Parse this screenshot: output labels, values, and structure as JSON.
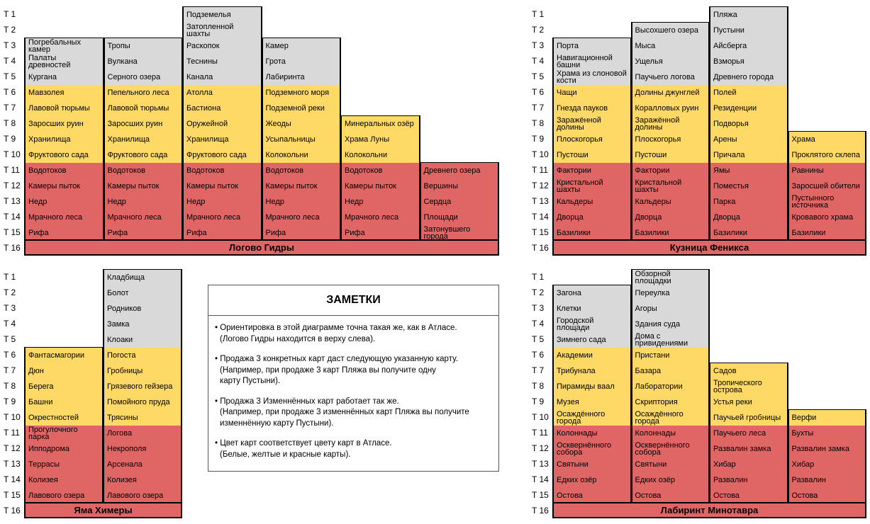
{
  "tier_labels": [
    "T 1",
    "T 2",
    "T 3",
    "T 4",
    "T 5",
    "T 6",
    "T 7",
    "T 8",
    "T 9",
    "T 10",
    "T 11",
    "T 12",
    "T 13",
    "T 14",
    "T 15",
    "T 16"
  ],
  "panels": [
    {
      "title": "Логово Гидры",
      "columns": [
        [
          null,
          null,
          "Погребальных камер",
          "Палаты древностей",
          "Кургана",
          "Мавзолея",
          "Лавовой тюрьмы",
          "Заросших руин",
          "Хранилища",
          "Фруктового сада",
          "Водотоков",
          "Камеры пыток",
          "Недр",
          "Мрачного леса",
          "Рифа"
        ],
        [
          null,
          null,
          "Тропы",
          "Вулкана",
          "Серного озера",
          "Пепельного леса",
          "Лавовой тюрьмы",
          "Заросших руин",
          "Хранилища",
          "Фруктового сада",
          "Водотоков",
          "Камеры пыток",
          "Недр",
          "Мрачного леса",
          "Рифа"
        ],
        [
          "Подземелья",
          "Затопленной шахты",
          "Раскопок",
          "Теснины",
          "Канала",
          "Атолла",
          "Бастиона",
          "Оружейной",
          "Хранилища",
          "Фруктового сада",
          "Водотоков",
          "Камеры пыток",
          "Недр",
          "Мрачного леса",
          "Рифа"
        ],
        [
          null,
          null,
          "Камер",
          "Грота",
          "Лабиринта",
          "Подземного моря",
          "Подземной реки",
          "Жеоды",
          "Усыпальницы",
          "Колокольни",
          "Водотоков",
          "Камеры пыток",
          "Недр",
          "Мрачного леса",
          "Рифа"
        ],
        [
          null,
          null,
          null,
          null,
          null,
          null,
          null,
          "Минеральных озёр",
          "Храма Луны",
          "Колокольни",
          "Водотоков",
          "Камеры пыток",
          "Недр",
          "Мрачного леса",
          "Рифа"
        ],
        [
          null,
          null,
          null,
          null,
          null,
          null,
          null,
          null,
          null,
          null,
          "Древнего озера",
          "Вершины",
          "Сердца",
          "Площади",
          "Затонувшего города"
        ]
      ]
    },
    {
      "title": "Кузница Феникса",
      "columns": [
        [
          null,
          null,
          "Порта",
          "Навигационной башни",
          "Храма из слоновой кости",
          "Чащи",
          "Гнезда пауков",
          "Заражённой долины",
          "Плоскогорья",
          "Пустоши",
          "Фактории",
          "Кристальной шахты",
          "Кальдеры",
          "Дворца",
          "Базилики"
        ],
        [
          null,
          "Высохшего озера",
          "Мыса",
          "Ущелья",
          "Паучьего логова",
          "Долины джунглей",
          "Коралловых руин",
          "Заражённой долины",
          "Плоскогорья",
          "Пустоши",
          "Фактории",
          "Кристальной шахты",
          "Кальдеры",
          "Дворца",
          "Базилики"
        ],
        [
          "Пляжа",
          "Пустыни",
          "Айсберга",
          "Взморья",
          "Древнего города",
          "Полей",
          "Резиденции",
          "Подворья",
          "Арены",
          "Причала",
          "Ямы",
          "Поместья",
          "Парка",
          "Дворца",
          "Базилики"
        ],
        [
          null,
          null,
          null,
          null,
          null,
          null,
          null,
          null,
          "Храма",
          "Проклятого склепа",
          "Равнины",
          "Заросшей обители",
          "Пустынного источника",
          "Кровавого храма",
          "Базилики"
        ]
      ]
    },
    {
      "title": "Яма Химеры",
      "columns": [
        [
          null,
          null,
          null,
          null,
          null,
          "Фантасмагории",
          "Дюн",
          "Берега",
          "Башни",
          "Окрестностей",
          "Прогулочного парка",
          "Ипподрома",
          "Террасы",
          "Колизея",
          "Лавового озера"
        ],
        [
          "Кладбища",
          "Болот",
          "Родников",
          "Замка",
          "Клоаки",
          "Погоста",
          "Гробницы",
          "Грязевого гейзера",
          "Помойного пруда",
          "Трясины",
          "Логова",
          "Некрополя",
          "Арсенала",
          "Колизея",
          "Лавового озера"
        ]
      ]
    },
    {
      "title": "Лабиринт Минотавра",
      "columns": [
        [
          null,
          "Загона",
          "Клетки",
          "Городской площади",
          "Зимнего сада",
          "Академии",
          "Трибунала",
          "Пирамиды ваал",
          "Музея",
          "Осаждённого города",
          "Колоннады",
          "Осквернённого собора",
          "Святыни",
          "Едких озёр",
          "Остова"
        ],
        [
          "Обзорной площадки",
          "Переулка",
          "Агоры",
          "Здания суда",
          "Дома с привидениями",
          "Пристани",
          "Базара",
          "Лаборатории",
          "Скриптория",
          "Осаждённого города",
          "Колоннады",
          "Осквернённого собора",
          "Святыни",
          "Едких озёр",
          "Остова"
        ],
        [
          null,
          null,
          null,
          null,
          null,
          null,
          "Садов",
          "Тропического острова",
          "Устья реки",
          "Паучьей гробницы",
          "Паучьего леса",
          "Развалин замка",
          "Хибар",
          "Развалин",
          "Остова"
        ],
        [
          null,
          null,
          null,
          null,
          null,
          null,
          null,
          null,
          null,
          "Верфи",
          "Бухты",
          "Развалин замка",
          "Хибар",
          "Развалин",
          "Остова"
        ]
      ]
    }
  ],
  "notes": {
    "title": "ЗАМЕТКИ",
    "items": [
      [
        "• Ориентировка в этой диаграмме точна такая же, как в Атласе.",
        "(Логово Гидры находится в верху слева)."
      ],
      [
        "• Продажа 3 конкретных карт даст следующую указанную карту.",
        "(Например, при продаже 3 карт Пляжа вы получите одну",
        "карту Пустыни)."
      ],
      [
        "• Продажа 3 Изменнённых карт работает так же.",
        "(Например, при продаже 3 изменнённых карт Пляжа вы получите",
        "изменнённую карту Пустыни)."
      ],
      [
        "• Цвет карт соответствует цвету карт в Атласе.",
        "(Белые, желтые и красные карты)."
      ]
    ]
  }
}
